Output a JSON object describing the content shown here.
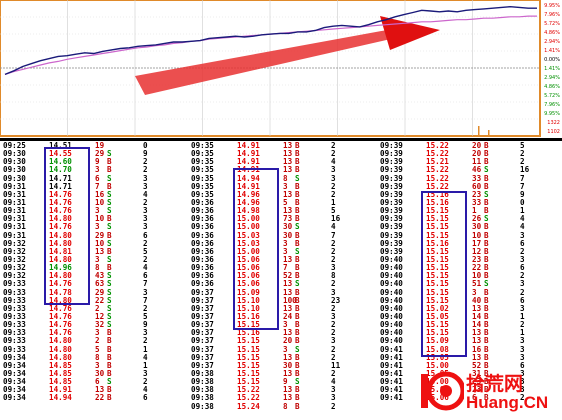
{
  "colors": {
    "up": "#e00000",
    "down": "#009000",
    "box": "#2a1aa8",
    "price_line": "#1a1a7a",
    "avg_line": "#cc66cc",
    "arrow": "#e01010",
    "grid": "#bbbbbb"
  },
  "chart": {
    "pct_labels_right": [
      "9.95%",
      "7.96%",
      "5.72%",
      "4.86%",
      "2.94%",
      "1.41%",
      "0.00%",
      "1.41%",
      "2.94%",
      "4.86%",
      "5.72%",
      "7.96%",
      "9.95%",
      "1322",
      "1102"
    ],
    "price_series": [
      0.05,
      0.1,
      0.16,
      0.2,
      0.24,
      0.27,
      0.3,
      0.31,
      0.33,
      0.35,
      0.34,
      0.37,
      0.39,
      0.41,
      0.42,
      0.44,
      0.45,
      0.46,
      0.48,
      0.5,
      0.5,
      0.51,
      0.52,
      0.55,
      0.56,
      0.57,
      0.58,
      0.57,
      0.58,
      0.6,
      0.61,
      0.62,
      0.62,
      0.64,
      0.64,
      0.66,
      0.7,
      0.72,
      0.73,
      0.72,
      0.71,
      0.74,
      0.78,
      0.81,
      0.85,
      0.88,
      0.91,
      0.94,
      0.93,
      0.92,
      0.93,
      0.92,
      0.94,
      0.95,
      0.96,
      0.97,
      0.98,
      0.99,
      0.98,
      0.97,
      0.97
    ],
    "avg_series": [
      0.05,
      0.09,
      0.12,
      0.15,
      0.18,
      0.21,
      0.23,
      0.26,
      0.28,
      0.3,
      0.32,
      0.34,
      0.36,
      0.38,
      0.4,
      0.42,
      0.43,
      0.45,
      0.46,
      0.48,
      0.49,
      0.51,
      0.52,
      0.54,
      0.55,
      0.56,
      0.57,
      0.58,
      0.59,
      0.6,
      0.61,
      0.62,
      0.63,
      0.64,
      0.65,
      0.66,
      0.67,
      0.68,
      0.69,
      0.7,
      0.71,
      0.72,
      0.73,
      0.74,
      0.75,
      0.76,
      0.77,
      0.78,
      0.78,
      0.79,
      0.8,
      0.81,
      0.81,
      0.82,
      0.83,
      0.83,
      0.84,
      0.85,
      0.85,
      0.86,
      0.86
    ]
  },
  "ticks": {
    "col1": [
      [
        "09:25",
        "14.51",
        "19",
        "",
        "0",
        "black"
      ],
      [
        "09:30",
        "14.55",
        "29",
        "S",
        "9",
        "red"
      ],
      [
        "09:30",
        "14.60",
        "9",
        "B",
        "2",
        "green"
      ],
      [
        "09:30",
        "14.70",
        "3",
        "B",
        "2",
        "green"
      ],
      [
        "09:30",
        "14.71",
        "6",
        "S",
        "3",
        "black"
      ],
      [
        "09:31",
        "14.71",
        "7",
        "B",
        "3",
        "black"
      ],
      [
        "09:31",
        "14.76",
        "16",
        "S",
        "4",
        "red"
      ],
      [
        "09:31",
        "14.76",
        "10",
        "S",
        "2",
        "red"
      ],
      [
        "09:31",
        "14.76",
        "3",
        "S",
        "3",
        "red"
      ],
      [
        "09:31",
        "14.80",
        "10",
        "B",
        "3",
        "red"
      ],
      [
        "09:31",
        "14.76",
        "3",
        "S",
        "3",
        "red"
      ],
      [
        "09:31",
        "14.80",
        "29",
        "B",
        "6",
        "red"
      ],
      [
        "09:32",
        "14.80",
        "10",
        "S",
        "2",
        "red"
      ],
      [
        "09:32",
        "14.81",
        "13",
        "B",
        "5",
        "red"
      ],
      [
        "09:32",
        "14.80",
        "3",
        "S",
        "2",
        "red"
      ],
      [
        "09:32",
        "14.96",
        "8",
        "B",
        "4",
        "green"
      ],
      [
        "09:32",
        "14.80",
        "43",
        "S",
        "6",
        "red"
      ],
      [
        "09:33",
        "14.76",
        "63",
        "S",
        "7",
        "red"
      ],
      [
        "09:33",
        "14.78",
        "29",
        "S",
        "3",
        "red"
      ],
      [
        "09:33",
        "14.80",
        "22",
        "S",
        "7",
        "red"
      ],
      [
        "09:33",
        "14.76",
        "2",
        "S",
        "2",
        "red"
      ],
      [
        "09:33",
        "14.76",
        "12",
        "S",
        "5",
        "red"
      ],
      [
        "09:33",
        "14.76",
        "32",
        "S",
        "9",
        "red"
      ],
      [
        "09:33",
        "14.76",
        "3",
        "B",
        "3",
        "red"
      ],
      [
        "09:33",
        "14.80",
        "2",
        "B",
        "2",
        "red"
      ],
      [
        "09:33",
        "14.80",
        "5",
        "B",
        "1",
        "red"
      ],
      [
        "09:34",
        "14.80",
        "8",
        "B",
        "4",
        "red"
      ],
      [
        "09:34",
        "14.85",
        "3",
        "B",
        "1",
        "red"
      ],
      [
        "09:34",
        "14.85",
        "30",
        "B",
        "3",
        "red"
      ],
      [
        "09:34",
        "14.85",
        "6",
        "S",
        "2",
        "red"
      ],
      [
        "09:34",
        "14.91",
        "13",
        "B",
        "4",
        "red"
      ],
      [
        "09:34",
        "14.94",
        "22",
        "B",
        "6",
        "red"
      ]
    ],
    "col2": [
      [
        "09:35",
        "14.91",
        "13",
        "B",
        "2"
      ],
      [
        "09:35",
        "14.91",
        "13",
        "B",
        "2"
      ],
      [
        "09:35",
        "14.91",
        "13",
        "B",
        "4"
      ],
      [
        "09:35",
        "14.91",
        "13",
        "B",
        "3"
      ],
      [
        "09:35",
        "14.94",
        "8",
        "S",
        "3"
      ],
      [
        "09:35",
        "14.91",
        "3",
        "B",
        "2"
      ],
      [
        "09:35",
        "14.96",
        "13",
        "B",
        "2"
      ],
      [
        "09:36",
        "14.96",
        "5",
        "B",
        "1"
      ],
      [
        "09:36",
        "14.98",
        "13",
        "B",
        "5"
      ],
      [
        "09:36",
        "15.00",
        "73",
        "B",
        "16"
      ],
      [
        "09:36",
        "15.00",
        "30",
        "S",
        "4"
      ],
      [
        "09:36",
        "15.03",
        "30",
        "B",
        "7"
      ],
      [
        "09:36",
        "15.03",
        "3",
        "B",
        "2"
      ],
      [
        "09:36",
        "15.00",
        "3",
        "S",
        "2"
      ],
      [
        "09:36",
        "15.06",
        "13",
        "B",
        "2"
      ],
      [
        "09:36",
        "15.06",
        "7",
        "B",
        "3"
      ],
      [
        "09:36",
        "15.06",
        "52",
        "B",
        "8"
      ],
      [
        "09:36",
        "15.06",
        "13",
        "S",
        "2"
      ],
      [
        "09:37",
        "15.09",
        "13",
        "B",
        "3"
      ],
      [
        "09:37",
        "15.10",
        "100",
        "B",
        "23"
      ],
      [
        "09:37",
        "15.10",
        "13",
        "B",
        "2"
      ],
      [
        "09:37",
        "15.16",
        "24",
        "B",
        "3"
      ],
      [
        "09:37",
        "15.15",
        "3",
        "B",
        "2"
      ],
      [
        "09:37",
        "15.16",
        "13",
        "B",
        "2"
      ],
      [
        "09:37",
        "15.15",
        "20",
        "B",
        "3"
      ],
      [
        "09:37",
        "15.15",
        "3",
        "S",
        "2"
      ],
      [
        "09:37",
        "15.15",
        "13",
        "B",
        "2"
      ],
      [
        "09:37",
        "15.15",
        "30",
        "B",
        "11"
      ],
      [
        "09:38",
        "15.15",
        "13",
        "B",
        "2"
      ],
      [
        "09:38",
        "15.15",
        "9",
        "S",
        "4"
      ],
      [
        "09:38",
        "15.22",
        "13",
        "B",
        "3"
      ],
      [
        "09:38",
        "15.22",
        "13",
        "B",
        "3"
      ],
      [
        "09:38",
        "15.24",
        "8",
        "B",
        "2"
      ]
    ],
    "col3": [
      [
        "09:39",
        "15.22",
        "20",
        "B",
        "5"
      ],
      [
        "09:39",
        "15.22",
        "20",
        "B",
        "2"
      ],
      [
        "09:39",
        "15.21",
        "11",
        "B",
        "2"
      ],
      [
        "09:39",
        "15.22",
        "46",
        "S",
        "16"
      ],
      [
        "09:39",
        "15.22",
        "33",
        "B",
        "7"
      ],
      [
        "09:39",
        "15.22",
        "60",
        "B",
        "7"
      ],
      [
        "09:39",
        "15.16",
        "23",
        "S",
        "9"
      ],
      [
        "09:39",
        "15.16",
        "33",
        "B",
        "0"
      ],
      [
        "09:39",
        "15.15",
        "1",
        "B",
        "1"
      ],
      [
        "09:39",
        "15.15",
        "26",
        "S",
        "4"
      ],
      [
        "09:39",
        "15.15",
        "30",
        "B",
        "4"
      ],
      [
        "09:39",
        "15.15",
        "10",
        "B",
        "3"
      ],
      [
        "09:39",
        "15.16",
        "17",
        "B",
        "6"
      ],
      [
        "09:39",
        "15.15",
        "12",
        "B",
        "2"
      ],
      [
        "09:40",
        "15.15",
        "23",
        "B",
        "3"
      ],
      [
        "09:40",
        "15.15",
        "22",
        "B",
        "6"
      ],
      [
        "09:40",
        "15.15",
        "10",
        "B",
        "2"
      ],
      [
        "09:40",
        "15.15",
        "51",
        "S",
        "3"
      ],
      [
        "09:40",
        "15.15",
        "3",
        "B",
        "2"
      ],
      [
        "09:40",
        "15.15",
        "40",
        "B",
        "6"
      ],
      [
        "09:40",
        "15.02",
        "13",
        "B",
        "3"
      ],
      [
        "09:40",
        "15.05",
        "14",
        "B",
        "1"
      ],
      [
        "09:40",
        "15.15",
        "14",
        "B",
        "2"
      ],
      [
        "09:40",
        "15.15",
        "13",
        "B",
        "1"
      ],
      [
        "09:40",
        "15.09",
        "13",
        "B",
        "3"
      ],
      [
        "09:41",
        "15.08",
        "16",
        "B",
        "3"
      ],
      [
        "09:41",
        "15.05",
        "13",
        "B",
        "3"
      ],
      [
        "09:41",
        "15.00",
        "52",
        "B",
        "6"
      ],
      [
        "09:41",
        "15.05",
        "31",
        "B",
        "3"
      ],
      [
        "09:41",
        "15.00",
        "23",
        "B",
        "3"
      ],
      [
        "09:41",
        "15.09",
        "23",
        "B",
        "3"
      ],
      [
        "09:41",
        "15.06",
        "6",
        "B",
        "2"
      ]
    ]
  },
  "watermark": {
    "cn": "拾荒网",
    "site": "Huang.CN",
    "logo_num": "10"
  }
}
